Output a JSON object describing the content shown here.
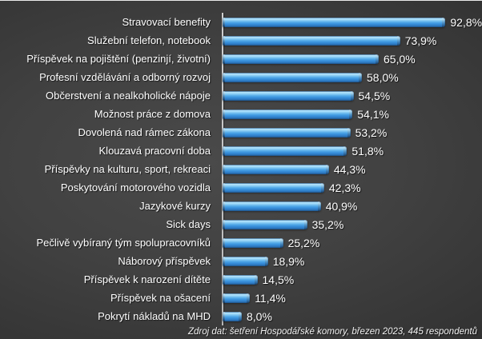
{
  "chart_data": {
    "type": "bar",
    "orientation": "horizontal",
    "title": "",
    "xlabel": "",
    "ylabel": "",
    "xlim": [
      0,
      100
    ],
    "grid": false,
    "legend": false,
    "categories": [
      "Stravovací benefity",
      "Služební telefon, notebook",
      "Příspěvek na pojištění (penzinjí, životní)",
      "Profesní vzdělávání a odborný rozvoj",
      "Občerstvení a nealkoholické nápoje",
      "Možnost práce z domova",
      "Dovolená nad rámec zákona",
      "Klouzavá pracovní doba",
      "Příspěvky na kulturu, sport, rekreaci",
      "Poskytování motorového vozidla",
      "Jazykové kurzy",
      "Sick days",
      "Pečlivě vybíraný tým spolupracovníků",
      "Náborový příspěvek",
      "Příspěvek k narození dítěte",
      "Příspěvek na ošacení",
      "Pokrytí nákladů na MHD"
    ],
    "values": [
      92.8,
      73.9,
      65.0,
      58.0,
      54.5,
      54.1,
      53.2,
      51.8,
      44.3,
      42.3,
      40.9,
      35.2,
      25.2,
      18.9,
      14.5,
      11.4,
      8.0
    ],
    "value_labels": [
      "92,8%",
      "73,9%",
      "65,0%",
      "58,0%",
      "54,5%",
      "54,1%",
      "53,2%",
      "51,8%",
      "44,3%",
      "42,3%",
      "40,9%",
      "35,2%",
      "25,2%",
      "18,9%",
      "14,5%",
      "11,4%",
      "8,0%"
    ],
    "source": "Zdroj dat: šetření Hospodářské komory, březen 2023, 445 respondentů",
    "colors": {
      "bar_fill": "#3a92dd",
      "bar_highlight": "#b9e6fb",
      "bar_shadow": "#245e99",
      "axis_line": "#c4c4c4",
      "label_text": "#ffffff",
      "background_center": "#4a4a4a",
      "background_edge": "#1a1a1a"
    }
  }
}
